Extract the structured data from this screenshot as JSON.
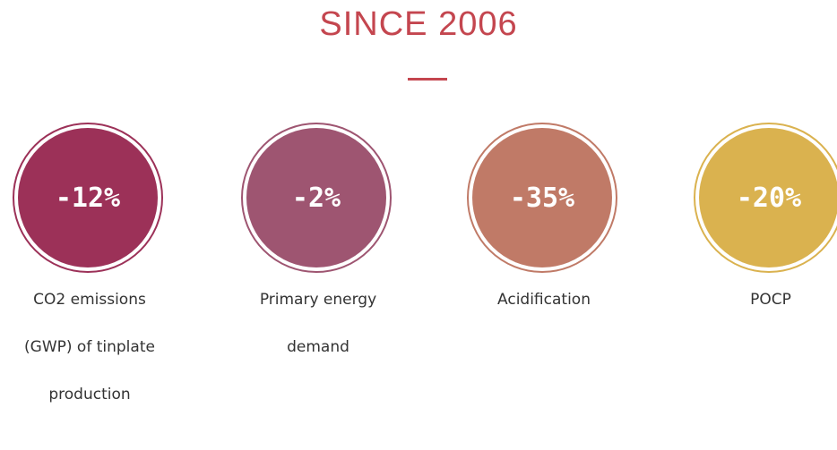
{
  "header": {
    "title": "SINCE 2006"
  },
  "items": [
    {
      "value": "-12%",
      "label": "CO2 emissions (GWP) of tinplate production",
      "color": "#9c3158"
    },
    {
      "value": "-2%",
      "label": "Primary energy demand",
      "color": "#9e5571"
    },
    {
      "value": "-35%",
      "label": "Acidification",
      "color": "#c07a67"
    },
    {
      "value": "-20%",
      "label": "POCP",
      "color": "#dab24f"
    }
  ]
}
